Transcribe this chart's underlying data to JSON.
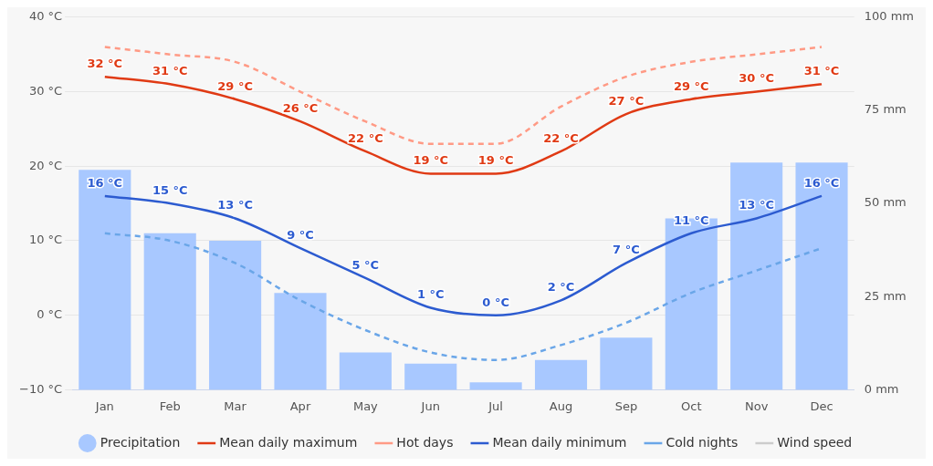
{
  "chart_data": {
    "type": "line",
    "categories": [
      "Jan",
      "Feb",
      "Mar",
      "Apr",
      "May",
      "Jun",
      "Jul",
      "Aug",
      "Sep",
      "Oct",
      "Nov",
      "Dec"
    ],
    "series": [
      {
        "name": "Precipitation",
        "type": "bar",
        "axis": "y2",
        "color": "#a8c8ff",
        "values": [
          59,
          42,
          40,
          26,
          10,
          7,
          2,
          8,
          14,
          46,
          61,
          61
        ]
      },
      {
        "name": "Mean daily maximum",
        "type": "line",
        "color": "#e03a14",
        "values": [
          32,
          31,
          29,
          26,
          22,
          19,
          19,
          22,
          27,
          29,
          30,
          31
        ],
        "value_labels": [
          "32 °C",
          "31 °C",
          "29 °C",
          "26 °C",
          "22 °C",
          "19 °C",
          "19 °C",
          "22 °C",
          "27 °C",
          "29 °C",
          "30 °C",
          "31 °C"
        ]
      },
      {
        "name": "Hot days",
        "type": "line",
        "line_style": "dashed",
        "color": "#ff9a85",
        "values": [
          36,
          35,
          34,
          30,
          26,
          23,
          23,
          28,
          32,
          34,
          35,
          36
        ]
      },
      {
        "name": "Mean daily minimum",
        "type": "line",
        "color": "#2c5bd0",
        "values": [
          16,
          15,
          13,
          9,
          5,
          1,
          0,
          2,
          7,
          11,
          13,
          16
        ],
        "value_labels": [
          "16 °C",
          "15 °C",
          "13 °C",
          "9 °C",
          "5 °C",
          "1 °C",
          "0 °C",
          "2 °C",
          "7 °C",
          "11 °C",
          "13 °C",
          "16 °C"
        ]
      },
      {
        "name": "Cold nights",
        "type": "line",
        "line_style": "dashed",
        "color": "#6aa6e8",
        "values": [
          11,
          10,
          7,
          2,
          -2,
          -5,
          -6,
          -4,
          -1,
          3,
          6,
          9
        ]
      },
      {
        "name": "Wind speed",
        "type": "line",
        "color": "#cccccc",
        "values": [
          null,
          null,
          null,
          null,
          null,
          null,
          null,
          null,
          null,
          null,
          null,
          null
        ]
      }
    ],
    "ylim": [
      -10,
      40
    ],
    "yticks": [
      {
        "value": -10,
        "label": "−10 °C"
      },
      {
        "value": 0,
        "label": "0 °C"
      },
      {
        "value": 10,
        "label": "10 °C"
      },
      {
        "value": 20,
        "label": "20 °C"
      },
      {
        "value": 30,
        "label": "30 °C"
      },
      {
        "value": 40,
        "label": "40 °C"
      }
    ],
    "y2lim": [
      0,
      100
    ],
    "y2ticks": [
      {
        "value": 0,
        "label": "0 mm"
      },
      {
        "value": 25,
        "label": "25 mm"
      },
      {
        "value": 50,
        "label": "50 mm"
      },
      {
        "value": 75,
        "label": "75 mm"
      },
      {
        "value": 100,
        "label": "100 mm"
      }
    ],
    "grid": "y",
    "legend": "bottom",
    "marker": "none"
  }
}
